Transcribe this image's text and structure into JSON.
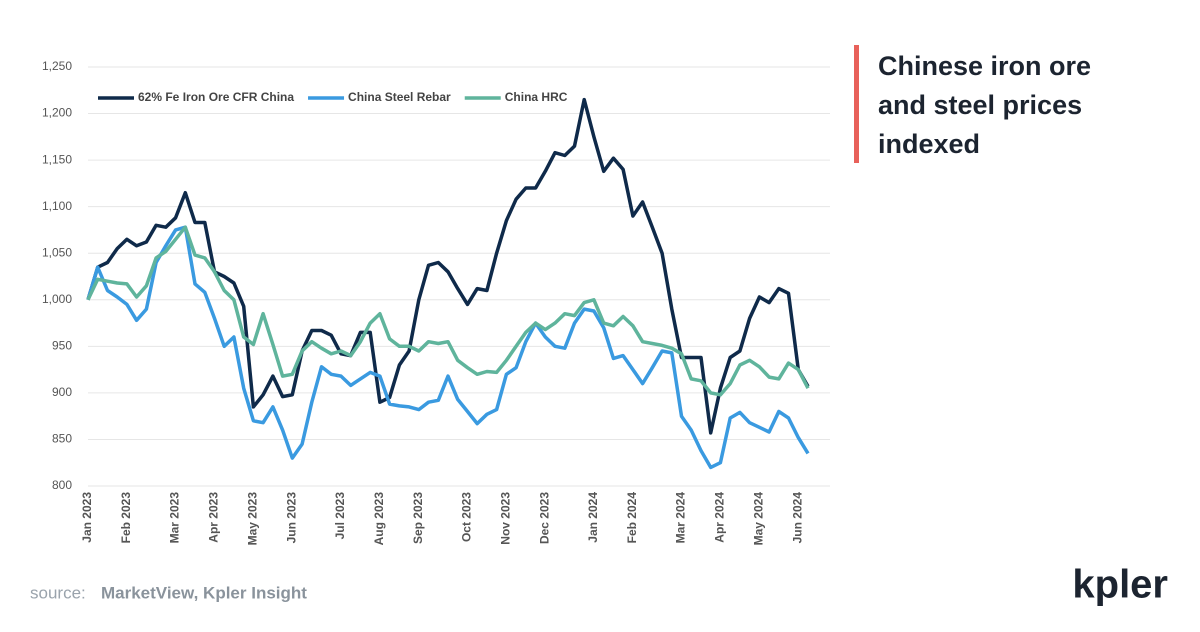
{
  "chart_data": {
    "type": "line",
    "title": "Chinese iron ore and steel prices indexed",
    "categories": [
      "Jan 2023",
      null,
      null,
      null,
      "Feb 2023",
      null,
      null,
      null,
      null,
      "Mar 2023",
      null,
      null,
      null,
      "Apr 2023",
      null,
      null,
      null,
      "May 2023",
      null,
      null,
      null,
      "Jun 2023",
      null,
      null,
      null,
      null,
      "Jul 2023",
      null,
      null,
      null,
      "Aug 2023",
      null,
      null,
      null,
      "Sep 2023",
      null,
      null,
      null,
      null,
      "Oct 2023",
      null,
      null,
      null,
      "Nov 2023",
      null,
      null,
      null,
      "Dec 2023",
      null,
      null,
      null,
      null,
      "Jan 2024",
      null,
      null,
      null,
      "Feb 2024",
      null,
      null,
      null,
      null,
      "Mar 2024",
      null,
      null,
      null,
      "Apr 2024",
      null,
      null,
      null,
      "May 2024",
      null,
      null,
      null,
      "Jun 2024",
      null
    ],
    "series": [
      {
        "name": "62% Fe Iron Ore CFR China",
        "color": "#0f2a4a",
        "values": [
          1000,
          1035,
          1040,
          1055,
          1065,
          1058,
          1062,
          1080,
          1078,
          1088,
          1115,
          1083,
          1083,
          1030,
          1025,
          1018,
          993,
          885,
          898,
          918,
          896,
          898,
          945,
          967,
          967,
          962,
          942,
          940,
          965,
          965,
          890,
          895,
          930,
          945,
          1000,
          1037,
          1040,
          1030,
          1012,
          995,
          1012,
          1010,
          1050,
          1085,
          1108,
          1120,
          1120,
          1138,
          1158,
          1155,
          1165,
          1215,
          1175,
          1138,
          1152,
          1140,
          1090,
          1105,
          1078,
          1050,
          990,
          938,
          938,
          938,
          857,
          905,
          938,
          945,
          980,
          1003,
          997,
          1012,
          1007,
          925,
          907
        ]
      },
      {
        "name": "China Steel Rebar",
        "color": "#3a9ae0",
        "values": [
          1000,
          1035,
          1010,
          1003,
          995,
          978,
          990,
          1040,
          1058,
          1075,
          1078,
          1017,
          1008,
          980,
          950,
          960,
          905,
          870,
          868,
          885,
          860,
          830,
          845,
          890,
          928,
          920,
          918,
          908,
          915,
          922,
          918,
          888,
          886,
          885,
          882,
          890,
          892,
          918,
          893,
          880,
          867,
          877,
          882,
          920,
          927,
          955,
          975,
          960,
          950,
          948,
          975,
          990,
          988,
          970,
          937,
          940,
          925,
          910,
          927,
          945,
          943,
          875,
          860,
          838,
          820,
          825,
          873,
          879,
          868,
          863,
          858,
          880,
          873,
          852,
          835
        ]
      },
      {
        "name": "China HRC",
        "color": "#5fb49c",
        "values": [
          1000,
          1022,
          1020,
          1018,
          1017,
          1003,
          1015,
          1045,
          1052,
          1065,
          1078,
          1048,
          1045,
          1030,
          1010,
          1000,
          960,
          952,
          985,
          952,
          918,
          920,
          945,
          955,
          948,
          942,
          945,
          940,
          955,
          975,
          985,
          958,
          950,
          950,
          945,
          955,
          953,
          955,
          935,
          927,
          920,
          923,
          922,
          935,
          950,
          965,
          975,
          968,
          975,
          985,
          983,
          997,
          1000,
          975,
          972,
          982,
          972,
          955,
          953,
          951,
          948,
          942,
          915,
          913,
          900,
          898,
          910,
          930,
          935,
          928,
          917,
          915,
          932,
          925,
          905
        ]
      }
    ],
    "ylim": [
      800,
      1250
    ],
    "yticks": [
      800,
      850,
      900,
      950,
      {
        "value": 1000,
        "label": "1,000"
      },
      {
        "value": 1050,
        "label": "1,050"
      },
      {
        "value": 1100,
        "label": "1,100"
      },
      {
        "value": 1150,
        "label": "1,150"
      },
      {
        "value": 1200,
        "label": "1,200"
      },
      {
        "value": 1250,
        "label": "1,250"
      }
    ],
    "grid": true,
    "legend": "top-left"
  },
  "source": {
    "label": "source:",
    "text": "MarketView, Kpler Insight"
  },
  "logo": "kpler"
}
